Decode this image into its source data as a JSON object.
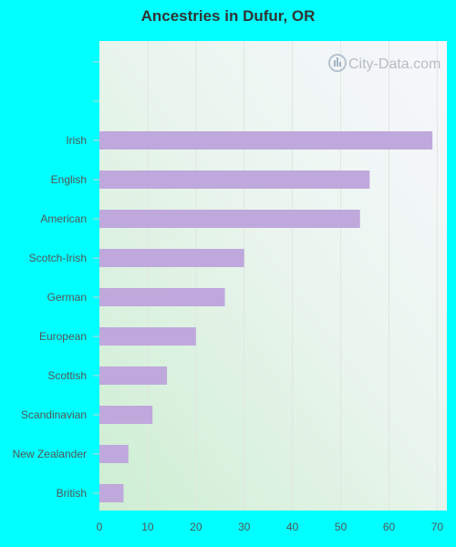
{
  "title": "Ancestries in Dufur, OR",
  "watermark": "City-Data.com",
  "colors": {
    "background": "#00ffff",
    "bar": "#bfa8dc",
    "grid": "#e0e6e0"
  },
  "chart_data": {
    "type": "bar",
    "orientation": "horizontal",
    "title": "Ancestries in Dufur, OR",
    "categories": [
      "Irish",
      "English",
      "American",
      "Scotch-Irish",
      "German",
      "European",
      "Scottish",
      "Scandinavian",
      "New Zealander",
      "British"
    ],
    "values": [
      69,
      56,
      54,
      30,
      26,
      20,
      14,
      11,
      6,
      5
    ],
    "xlim": [
      0,
      72
    ],
    "xticks": [
      0,
      10,
      20,
      30,
      40,
      50,
      60,
      70
    ],
    "xlabel": "",
    "ylabel": "",
    "grid": true
  }
}
